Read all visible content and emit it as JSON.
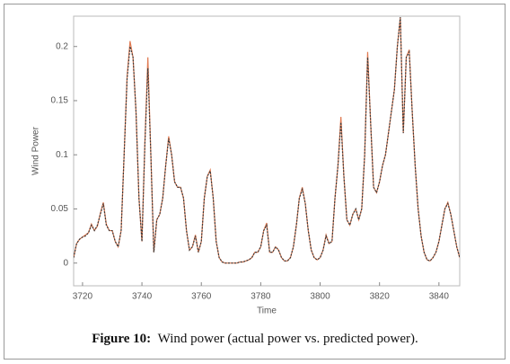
{
  "chart_data": {
    "type": "line",
    "xlabel": "Time",
    "ylabel": "Wind Power",
    "caption": {
      "label": "Figure 10:",
      "text": "Wind power (actual power vs. predicted power)."
    },
    "x": [
      3717,
      3718,
      3719,
      3720,
      3721,
      3722,
      3723,
      3724,
      3725,
      3726,
      3727,
      3728,
      3729,
      3730,
      3731,
      3732,
      3733,
      3734,
      3735,
      3736,
      3737,
      3738,
      3739,
      3740,
      3741,
      3742,
      3743,
      3744,
      3745,
      3746,
      3747,
      3748,
      3749,
      3750,
      3751,
      3752,
      3753,
      3754,
      3755,
      3756,
      3757,
      3758,
      3759,
      3760,
      3761,
      3762,
      3763,
      3764,
      3765,
      3766,
      3767,
      3768,
      3769,
      3770,
      3771,
      3772,
      3773,
      3774,
      3775,
      3776,
      3777,
      3778,
      3779,
      3780,
      3781,
      3782,
      3783,
      3784,
      3785,
      3786,
      3787,
      3788,
      3789,
      3790,
      3791,
      3792,
      3793,
      3794,
      3795,
      3796,
      3797,
      3798,
      3799,
      3800,
      3801,
      3802,
      3803,
      3804,
      3805,
      3806,
      3807,
      3808,
      3809,
      3810,
      3811,
      3812,
      3813,
      3814,
      3815,
      3816,
      3817,
      3818,
      3819,
      3820,
      3821,
      3822,
      3823,
      3824,
      3825,
      3826,
      3827,
      3828,
      3829,
      3830,
      3831,
      3832,
      3833,
      3834,
      3835,
      3836,
      3837,
      3838,
      3839,
      3840,
      3841,
      3842,
      3843,
      3844,
      3845,
      3846,
      3847
    ],
    "series": [
      {
        "color": "#e07a52",
        "dash": false,
        "values": [
          0.005,
          0.018,
          0.022,
          0.024,
          0.026,
          0.028,
          0.036,
          0.03,
          0.034,
          0.046,
          0.056,
          0.036,
          0.03,
          0.03,
          0.02,
          0.015,
          0.03,
          0.1,
          0.172,
          0.205,
          0.19,
          0.14,
          0.06,
          0.02,
          0.112,
          0.19,
          0.1,
          0.01,
          0.04,
          0.045,
          0.06,
          0.09,
          0.117,
          0.1,
          0.075,
          0.07,
          0.07,
          0.06,
          0.03,
          0.012,
          0.015,
          0.026,
          0.01,
          0.02,
          0.06,
          0.08,
          0.086,
          0.06,
          0.02,
          0.005,
          0.001,
          0,
          0,
          0,
          0,
          0,
          0.001,
          0.001,
          0.002,
          0.003,
          0.005,
          0.01,
          0.01,
          0.015,
          0.03,
          0.037,
          0.01,
          0.01,
          0.015,
          0.012,
          0.005,
          0.002,
          0.002,
          0.005,
          0.015,
          0.035,
          0.06,
          0.07,
          0.055,
          0.03,
          0.012,
          0.005,
          0.003,
          0.005,
          0.012,
          0.026,
          0.018,
          0.02,
          0.06,
          0.09,
          0.135,
          0.08,
          0.04,
          0.035,
          0.045,
          0.05,
          0.04,
          0.05,
          0.1,
          0.195,
          0.13,
          0.07,
          0.065,
          0.075,
          0.09,
          0.1,
          0.12,
          0.14,
          0.16,
          0.2,
          0.227,
          0.12,
          0.19,
          0.197,
          0.14,
          0.09,
          0.05,
          0.025,
          0.01,
          0.003,
          0.002,
          0.005,
          0.01,
          0.02,
          0.035,
          0.05,
          0.056,
          0.045,
          0.03,
          0.015,
          0.005
        ]
      },
      {
        "color": "#3a3a3a",
        "dash": true,
        "values": [
          0.005,
          0.018,
          0.022,
          0.024,
          0.025,
          0.028,
          0.035,
          0.03,
          0.035,
          0.045,
          0.055,
          0.035,
          0.03,
          0.03,
          0.02,
          0.015,
          0.03,
          0.1,
          0.17,
          0.2,
          0.19,
          0.14,
          0.06,
          0.02,
          0.11,
          0.18,
          0.1,
          0.01,
          0.04,
          0.045,
          0.06,
          0.09,
          0.115,
          0.1,
          0.075,
          0.07,
          0.07,
          0.06,
          0.03,
          0.012,
          0.015,
          0.025,
          0.01,
          0.02,
          0.06,
          0.08,
          0.085,
          0.06,
          0.02,
          0.005,
          0.001,
          0,
          0,
          0,
          0,
          0,
          0.001,
          0.001,
          0.002,
          0.003,
          0.005,
          0.01,
          0.01,
          0.015,
          0.03,
          0.035,
          0.01,
          0.01,
          0.015,
          0.012,
          0.005,
          0.002,
          0.002,
          0.005,
          0.015,
          0.035,
          0.06,
          0.068,
          0.055,
          0.03,
          0.012,
          0.005,
          0.003,
          0.005,
          0.012,
          0.025,
          0.018,
          0.02,
          0.06,
          0.09,
          0.13,
          0.08,
          0.04,
          0.035,
          0.045,
          0.05,
          0.04,
          0.05,
          0.1,
          0.19,
          0.13,
          0.07,
          0.065,
          0.075,
          0.09,
          0.1,
          0.12,
          0.14,
          0.16,
          0.2,
          0.227,
          0.12,
          0.19,
          0.195,
          0.14,
          0.09,
          0.05,
          0.025,
          0.01,
          0.003,
          0.002,
          0.005,
          0.01,
          0.02,
          0.035,
          0.05,
          0.055,
          0.045,
          0.03,
          0.015,
          0.005
        ]
      }
    ],
    "xlim": [
      3717,
      3847
    ],
    "xticks": [
      3720,
      3740,
      3760,
      3780,
      3800,
      3820,
      3840
    ],
    "ylim": [
      -0.021,
      0.228
    ],
    "yticks": [
      0,
      0.05,
      0.1,
      0.15,
      0.2
    ]
  }
}
